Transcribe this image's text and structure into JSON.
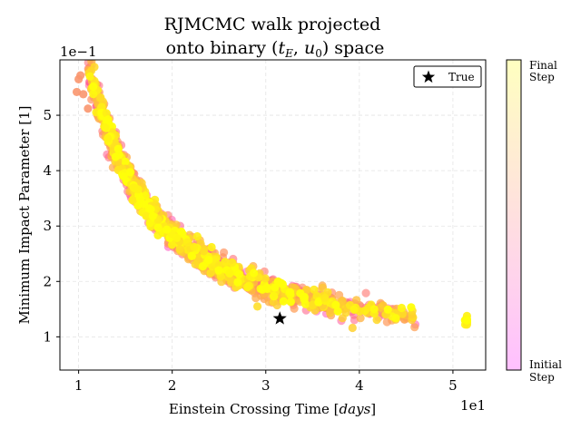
{
  "chart_data": {
    "type": "scatter",
    "title_lines": [
      "RJMCMC walk projected",
      "onto binary (t_E, u_0) space"
    ],
    "xlabel": "Einstein Crossing Time [days]",
    "ylabel": "Minimum Impact Parameter [1]",
    "x_multiplier_text": "1e1",
    "y_multiplier_text": "1e−1",
    "xlim": [
      0.8,
      5.35
    ],
    "ylim": [
      0.4,
      6.0
    ],
    "xticks": [
      1,
      2,
      3,
      4,
      5
    ],
    "yticks": [
      1,
      2,
      3,
      4,
      5
    ],
    "grid": true,
    "legend": {
      "position": "top-right",
      "label": "True"
    },
    "true_point": {
      "x": 3.15,
      "y": 1.33
    },
    "colorbar": {
      "top_label": [
        "Final",
        "Step"
      ],
      "bottom_label": [
        "Initial",
        "Step"
      ],
      "colormap": "spring_r"
    },
    "trend": {
      "a": 0.82,
      "b": 4.95,
      "c": 0.75,
      "x_range": [
        1.0,
        5.15
      ]
    }
  }
}
